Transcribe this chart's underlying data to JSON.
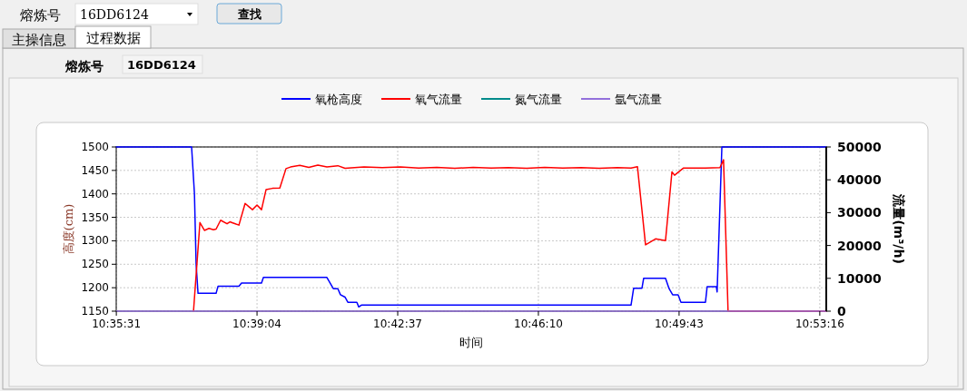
{
  "chart_data": {
    "type": "line",
    "xlabel": "时间",
    "ylabel": "高度(cm)",
    "y2label": "流量(m³/h)",
    "annotations": [
      "熔炼号",
      "16DD6124",
      "查找",
      "主操信息",
      "过程数据",
      "熔炼号",
      "16DD6124"
    ],
    "xlim": [
      10.5919,
      10.8905
    ],
    "xticks": [
      {
        "value": 10.591944,
        "label": "10:35:31"
      },
      {
        "value": 10.651111,
        "label": "10:39:04"
      },
      {
        "value": 10.710278,
        "label": "10:42:37"
      },
      {
        "value": 10.769444,
        "label": "10:46:10"
      },
      {
        "value": 10.828611,
        "label": "10:49:43"
      },
      {
        "value": 10.887778,
        "label": "10:53:16"
      }
    ],
    "ylim": [
      1150,
      1500
    ],
    "yticks": [
      1150,
      1200,
      1250,
      1300,
      1350,
      1400,
      1450,
      1500
    ],
    "y2lim": [
      0,
      50000
    ],
    "y2ticks": [
      0,
      10000,
      20000,
      30000,
      40000,
      50000
    ],
    "grid": true,
    "legend": "top",
    "series": [
      {
        "name": "氧枪高度",
        "color": "#0000ff",
        "x": [
          10.5919,
          10.6236,
          10.6248,
          10.6255,
          10.6263,
          10.6339,
          10.6347,
          10.6435,
          10.6446,
          10.653,
          10.6538,
          10.6805,
          10.6832,
          10.6851,
          10.6862,
          10.6881,
          10.6893,
          10.6931,
          10.6939,
          10.695,
          10.8084,
          10.8095,
          10.813,
          10.8137,
          10.8229,
          10.8244,
          10.8259,
          10.8282,
          10.8294,
          10.8397,
          10.8404,
          10.8443,
          10.8446,
          10.8466,
          10.8905
        ],
        "values": [
          1500,
          1500,
          1400,
          1250,
          1188,
          1188,
          1203,
          1203,
          1210,
          1210,
          1222,
          1222,
          1198,
          1198,
          1185,
          1180,
          1169,
          1169,
          1159,
          1163,
          1163,
          1199,
          1199,
          1220,
          1220,
          1198,
          1185,
          1185,
          1169,
          1169,
          1202,
          1202,
          1191,
          1500,
          1500
        ]
      },
      {
        "name": "氧气流量",
        "color": "#ff0000",
        "axis": "y2",
        "x": [
          10.6244,
          10.6271,
          10.629,
          10.6309,
          10.6328,
          10.6339,
          10.6358,
          10.6385,
          10.6397,
          10.6423,
          10.6435,
          10.6461,
          10.6477,
          10.6492,
          10.6511,
          10.653,
          10.6549,
          10.6576,
          10.6607,
          10.6633,
          10.6652,
          10.6691,
          10.6729,
          10.6767,
          10.6805,
          10.6851,
          10.6881,
          10.6961,
          10.7038,
          10.7114,
          10.7191,
          10.7267,
          10.7343,
          10.742,
          10.7496,
          10.7568,
          10.7645,
          10.7721,
          10.7797,
          10.7874,
          10.795,
          10.8027,
          10.8084,
          10.8111,
          10.8145,
          10.8187,
          10.8229,
          10.8256,
          10.8267,
          10.8305,
          10.8397,
          10.8458,
          10.8473,
          10.8492,
          10.8905
        ],
        "values": [
          0,
          27000,
          24600,
          25200,
          24800,
          25000,
          27700,
          26600,
          27200,
          26500,
          26200,
          32800,
          31800,
          30900,
          32300,
          30900,
          37000,
          37400,
          37500,
          43400,
          43900,
          44400,
          43800,
          44500,
          43900,
          44300,
          43500,
          43900,
          43700,
          43900,
          43600,
          43800,
          43500,
          43800,
          43600,
          43700,
          43500,
          43800,
          43600,
          43700,
          43500,
          43700,
          43600,
          44000,
          20200,
          22000,
          21500,
          42400,
          41400,
          43600,
          43600,
          43700,
          46100,
          0,
          0
        ]
      },
      {
        "name": "氮气流量",
        "color": "#008b8b",
        "axis": "y2"
      },
      {
        "name": "氩气流量",
        "color": "#9370db",
        "axis": "y2",
        "x": [
          10.5919,
          10.8905
        ],
        "values": [
          0,
          0
        ]
      }
    ]
  }
}
